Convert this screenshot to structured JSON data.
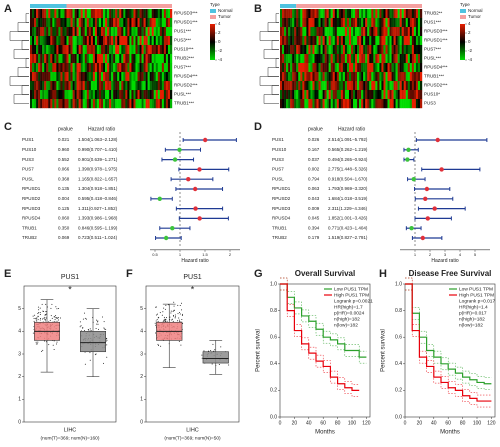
{
  "chart_data": [
    {
      "type": "heatmap",
      "panel": "A",
      "rows": [
        "RPUSD3***",
        "RPUSD1***",
        "PUS1***",
        "PUS3***",
        "PUS10***",
        "TRUB2***",
        "PUS7***",
        "RPUSD4***",
        "RPUSD2***",
        "PUSL***",
        "TRUB1***"
      ],
      "legend_title": "Type",
      "groups": [
        {
          "name": "Normal",
          "color": "#4fc3e0"
        },
        {
          "name": "Tumor",
          "color": "#f4a0a0"
        }
      ],
      "colorbar_ticks": [
        4,
        2,
        0,
        -2,
        -4
      ]
    },
    {
      "type": "heatmap",
      "panel": "B",
      "rows": [
        "TRUB2**",
        "PUS1***",
        "RPUSD3***",
        "RPUSD1***",
        "PUS7***",
        "PUSL***",
        "RPUSD4***",
        "TRUB1***",
        "RPUSD2***",
        "PUS10*",
        "PUS3"
      ],
      "legend_title": "Type",
      "groups": [
        {
          "name": "Normal",
          "color": "#4fc3e0"
        },
        {
          "name": "Tumor",
          "color": "#f4a0a0"
        }
      ],
      "colorbar_ticks": [
        4,
        2,
        0,
        -2,
        -4
      ]
    },
    {
      "type": "forest",
      "panel": "C",
      "pvalue_header": "pvalue",
      "hr_header": "Hazard ratio",
      "xlabel": "Hazard ratio",
      "reference_line": 1,
      "genes": [
        "PUS1",
        "PUS10",
        "PUS3",
        "PUS7",
        "PUSL",
        "RPUSD1",
        "RPUSD2",
        "RPUSD3",
        "RPUSD4",
        "TRUB1",
        "TRUB2"
      ],
      "pvalues": [
        "0.021",
        "0.960",
        "0.552",
        "0.066",
        "0.368",
        "0.135",
        "0.004",
        "0.125",
        "0.060",
        "0.350",
        "0.069"
      ],
      "hr_labels": [
        "1.504(1.063−2.128)",
        "0.990(0.707−1.410)",
        "0.901(0.639−1.271)",
        "1.390(0.978−1.975)",
        "1.165(0.822−1.657)",
        "1.304(0.918−1.851)",
        "0.595(0.418−0.846)",
        "1.311(0.927−1.852)",
        "1.393(0.986−1.968)",
        "0.846(0.595−1.199)",
        "0.723(0.511−1.024)"
      ],
      "hr": [
        1.504,
        0.99,
        0.901,
        1.39,
        1.165,
        1.304,
        0.595,
        1.311,
        1.393,
        0.846,
        0.723
      ],
      "lower": [
        1.063,
        0.707,
        0.639,
        0.978,
        0.822,
        0.918,
        0.418,
        0.927,
        0.986,
        0.595,
        0.511
      ],
      "upper": [
        2.128,
        1.41,
        1.271,
        1.975,
        1.657,
        1.851,
        0.846,
        1.852,
        1.968,
        1.199,
        1.024
      ],
      "xlim": [
        0.4,
        2.2
      ],
      "xticks": [
        0.5,
        1,
        1.5,
        2
      ],
      "point_color": "#e0303a",
      "ci_color": "#1f3a93"
    },
    {
      "type": "forest",
      "panel": "D",
      "pvalue_header": "pvalue",
      "hr_header": "Hazard ratio",
      "xlabel": "Hazard ratio",
      "reference_line": 1,
      "genes": [
        "PUS1",
        "PUS10",
        "PUS3",
        "PUS7",
        "PUSL",
        "RPUSD1",
        "RPUSD2",
        "RPUSD3",
        "RPUSD4",
        "TRUB1",
        "TRUB2"
      ],
      "pvalues": [
        "0.026",
        "0.167",
        "0.037",
        "0.002",
        "0.794",
        "0.063",
        "0.043",
        "0.009",
        "0.045",
        "0.394",
        "0.179"
      ],
      "hr_labels": [
        "2.514(1.091−5.792)",
        "0.565(0.262−1.219)",
        "0.494(0.265−0.924)",
        "2.775(1.448−5.326)",
        "0.918(0.504−1.670)",
        "1.793(0.969−3.320)",
        "1.684(1.018−3.519)",
        "2.311(1.229−4.346)",
        "1.852(1.001−3.426)",
        "0.771(0.423−1.404)",
        "1.519(0.827−2.791)"
      ],
      "hr": [
        2.514,
        0.565,
        0.494,
        2.775,
        0.918,
        1.793,
        1.684,
        2.311,
        1.852,
        0.771,
        1.519
      ],
      "lower": [
        1.091,
        0.262,
        0.265,
        1.448,
        0.504,
        0.969,
        1.018,
        1.229,
        1.001,
        0.423,
        0.827
      ],
      "upper": [
        5.792,
        1.219,
        0.924,
        5.326,
        1.67,
        3.32,
        3.519,
        4.346,
        3.426,
        1.404,
        2.791
      ],
      "xlim": [
        0,
        6
      ],
      "xticks": [
        1,
        2,
        3,
        4,
        5
      ],
      "point_color": "#e0303a",
      "ci_color": "#1f3a93"
    },
    {
      "type": "box",
      "panel": "E",
      "title": "PUS1",
      "xlabel": "LIHC",
      "sublabel": "(num(T)=369; num(N)=160)",
      "annotation": "*",
      "ylim": [
        0,
        6
      ],
      "yticks": [
        0,
        1,
        2,
        3,
        4,
        5
      ],
      "series": [
        {
          "name": "Tumor",
          "color": "#f08080",
          "whisker_low": 2.2,
          "q1": 3.6,
          "median": 4.0,
          "q3": 4.4,
          "whisker_high": 5.4
        },
        {
          "name": "Normal",
          "color": "#8c8c8c",
          "whisker_low": 2.0,
          "q1": 3.1,
          "median": 3.5,
          "q3": 4.0,
          "whisker_high": 5.0
        }
      ]
    },
    {
      "type": "box",
      "panel": "F",
      "title": "PUS1",
      "xlabel": "LIHC",
      "sublabel": "(num(T)=369; num(N)=50)",
      "annotation": "*",
      "ylim": [
        0,
        6
      ],
      "yticks": [
        0,
        1,
        2,
        3,
        4,
        5
      ],
      "series": [
        {
          "name": "Tumor",
          "color": "#f08080",
          "whisker_low": 2.4,
          "q1": 3.6,
          "median": 4.0,
          "q3": 4.4,
          "whisker_high": 5.2
        },
        {
          "name": "Normal",
          "color": "#8c8c8c",
          "whisker_low": 2.1,
          "q1": 2.6,
          "median": 2.8,
          "q3": 3.1,
          "whisker_high": 3.6
        }
      ]
    },
    {
      "type": "survival",
      "panel": "G",
      "title": "Overall Survival",
      "xlabel": "Months",
      "ylabel": "Percent survival",
      "stats": [
        "Logrank p=0.0021",
        "HR(high)=1.7",
        "p(HR)=0.0024",
        "n(high)=182",
        "n(low)=182"
      ],
      "xlim": [
        0,
        125
      ],
      "xticks": [
        0,
        20,
        40,
        60,
        80,
        100,
        120
      ],
      "ylim": [
        0,
        1
      ],
      "yticks": [
        {
          "value": 0,
          "label": "0.0"
        },
        {
          "value": 0.2,
          "label": "0.2"
        },
        {
          "value": 0.4,
          "label": "0.4"
        },
        {
          "value": 0.6,
          "label": "0.6"
        },
        {
          "value": 0.8,
          "label": "0.8"
        },
        {
          "value": 1,
          "label": "1.0"
        }
      ],
      "x": [
        0,
        10,
        20,
        30,
        40,
        50,
        60,
        70,
        80,
        90,
        100,
        110,
        120
      ],
      "series": [
        {
          "name": "Low PUS1 TPM",
          "color": "#2ca02c",
          "values": [
            1,
            0.9,
            0.82,
            0.76,
            0.72,
            0.66,
            0.6,
            0.58,
            0.55,
            0.5,
            0.5,
            0.45,
            0.45
          ]
        },
        {
          "name": "High PUS1 TPM",
          "color": "#e8000b",
          "values": [
            1,
            0.8,
            0.65,
            0.55,
            0.48,
            0.42,
            0.38,
            0.3,
            0.25,
            0.22,
            0.2,
            0.2,
            null
          ]
        }
      ]
    },
    {
      "type": "survival",
      "panel": "H",
      "title": "Disease Free Survival",
      "xlabel": "Months",
      "ylabel": "Percent survival",
      "stats": [
        "Logrank p=0.017",
        "HR(high)=1.4",
        "p(HR)=0.017",
        "n(high)=182",
        "n(low)=182"
      ],
      "xlim": [
        0,
        125
      ],
      "xticks": [
        0,
        20,
        40,
        60,
        80,
        100,
        120
      ],
      "ylim": [
        0,
        1
      ],
      "yticks": [
        {
          "value": 0,
          "label": "0.0"
        },
        {
          "value": 0.2,
          "label": "0.2"
        },
        {
          "value": 0.4,
          "label": "0.4"
        },
        {
          "value": 0.6,
          "label": "0.6"
        },
        {
          "value": 0.8,
          "label": "0.8"
        },
        {
          "value": 1,
          "label": "1.0"
        }
      ],
      "x": [
        0,
        10,
        20,
        30,
        40,
        50,
        60,
        70,
        80,
        90,
        100,
        110,
        120
      ],
      "series": [
        {
          "name": "Low PUS1 TPM",
          "color": "#2ca02c",
          "values": [
            1,
            0.78,
            0.6,
            0.5,
            0.45,
            0.4,
            0.36,
            0.33,
            0.3,
            0.28,
            0.26,
            0.25,
            0.25
          ]
        },
        {
          "name": "High PUS1 TPM",
          "color": "#e8000b",
          "values": [
            1,
            0.65,
            0.45,
            0.38,
            0.3,
            0.26,
            0.22,
            0.2,
            0.16,
            0.14,
            0.12,
            0.12,
            0.12
          ]
        }
      ]
    }
  ]
}
